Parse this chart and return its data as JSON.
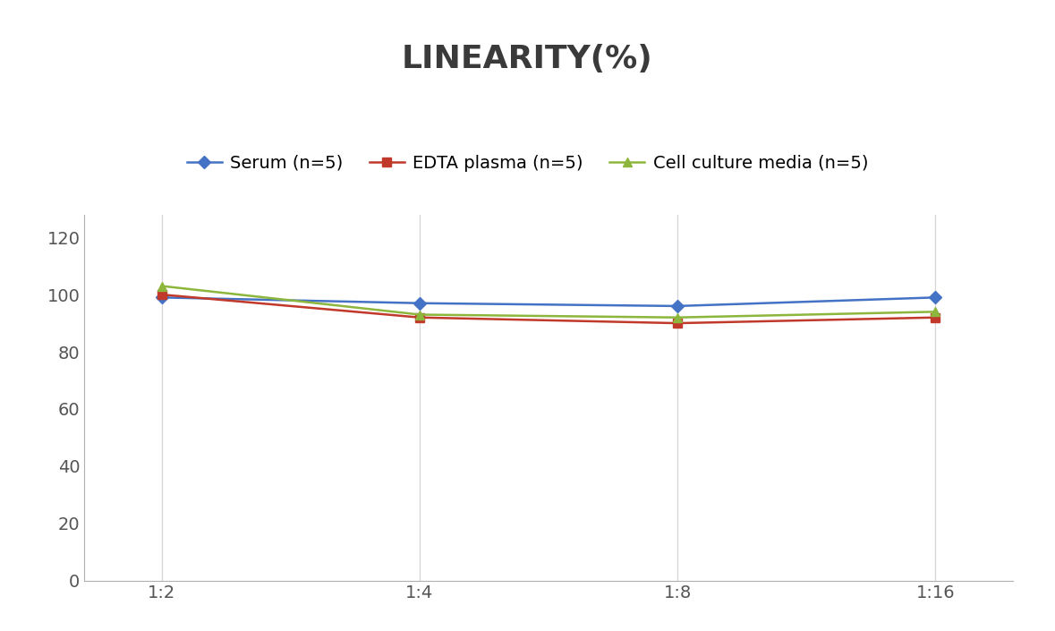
{
  "title": "LINEARITY(%)",
  "x_labels": [
    "1:2",
    "1:4",
    "1:8",
    "1:16"
  ],
  "x_positions": [
    0,
    1,
    2,
    3
  ],
  "series": [
    {
      "label": "Serum (n=5)",
      "values": [
        99,
        97,
        96,
        99
      ],
      "color": "#4472C4",
      "marker": "D",
      "linewidth": 1.8,
      "markersize": 7
    },
    {
      "label": "EDTA plasma (n=5)",
      "values": [
        100,
        92,
        90,
        92
      ],
      "color": "#C0392B",
      "marker": "s",
      "linewidth": 1.8,
      "markersize": 7
    },
    {
      "label": "Cell culture media (n=5)",
      "values": [
        103,
        93,
        92,
        94
      ],
      "color": "#8DB63C",
      "marker": "^",
      "linewidth": 1.8,
      "markersize": 7
    }
  ],
  "ylim": [
    0,
    128
  ],
  "yticks": [
    0,
    20,
    40,
    60,
    80,
    100,
    120
  ],
  "background_color": "#ffffff",
  "grid_color": "#d5d5d5",
  "title_fontsize": 26,
  "tick_fontsize": 14,
  "legend_fontsize": 14
}
